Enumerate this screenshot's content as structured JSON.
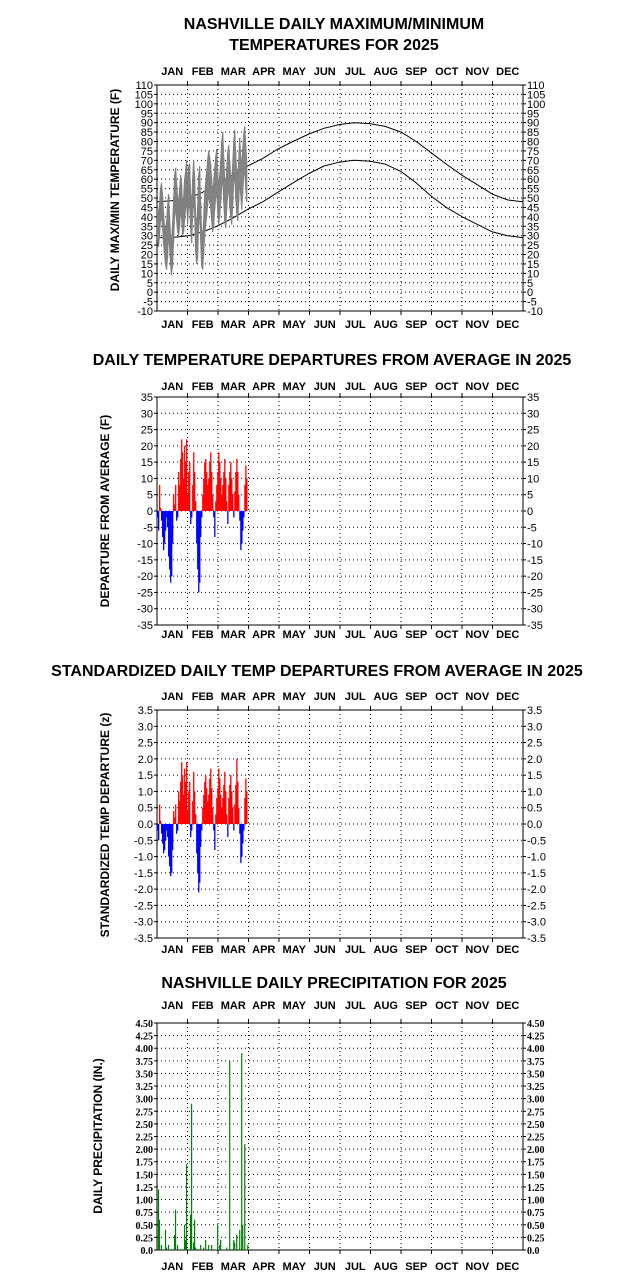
{
  "colors": {
    "actual": "#808080",
    "normal": "#000000",
    "above": "#ff0000",
    "below": "#0000ff",
    "precip": "#008000"
  },
  "months": [
    "JAN",
    "FEB",
    "MAR",
    "APR",
    "MAY",
    "JUN",
    "JUL",
    "AUG",
    "SEP",
    "OCT",
    "NOV",
    "DEC"
  ],
  "chart_data": [
    {
      "type": "line",
      "title_lines": [
        "NASHVILLE DAILY MAXIMUM/MINIMUM",
        "TEMPERATURES FOR 2025"
      ],
      "ylabel": "DAILY MAX/MIN TEMPERATURE (F)",
      "ylim": [
        -10,
        110
      ],
      "yticks": [
        "110",
        "105",
        "100",
        "95",
        "90",
        "85",
        "80",
        "75",
        "70",
        "65",
        "60",
        "55",
        "50",
        "45",
        "40",
        "35",
        "30",
        "25",
        "20",
        "15",
        "10",
        "5",
        "0",
        "-5",
        "-10"
      ],
      "normal_high": {
        "day": [
          1,
          15,
          32,
          46,
          60,
          75,
          91,
          106,
          121,
          136,
          152,
          167,
          182,
          197,
          213,
          228,
          244,
          259,
          274,
          289,
          305,
          320,
          335,
          350,
          365
        ],
        "value": [
          48,
          48.5,
          50,
          53,
          57,
          62,
          67,
          71,
          76,
          80,
          84,
          87,
          89,
          90,
          89.5,
          88,
          85,
          80,
          74,
          68,
          62,
          57,
          52,
          49,
          48
        ]
      },
      "normal_low": {
        "day": [
          1,
          15,
          32,
          46,
          60,
          75,
          91,
          106,
          121,
          136,
          152,
          167,
          182,
          197,
          213,
          228,
          244,
          259,
          274,
          289,
          305,
          320,
          335,
          350,
          365
        ],
        "value": [
          29,
          29,
          30,
          32,
          35,
          39,
          44,
          48,
          53,
          58,
          63,
          67,
          69,
          70,
          69.5,
          68,
          64,
          58,
          51,
          45,
          40,
          36,
          32,
          30,
          29
        ]
      },
      "actual_high": [
        45,
        40,
        47,
        55,
        58,
        52,
        42,
        35,
        33,
        37,
        45,
        52,
        41,
        30,
        27,
        36,
        47,
        62,
        66,
        58,
        50,
        48,
        55,
        62,
        58,
        45,
        50,
        60,
        64,
        70,
        54,
        67,
        68,
        52,
        45,
        60,
        70,
        62,
        40,
        35,
        45,
        62,
        67,
        48,
        33,
        28,
        38,
        52,
        58,
        64,
        70,
        75,
        72,
        68,
        60,
        52,
        58,
        66,
        72,
        76,
        64,
        56,
        62,
        70,
        80,
        85,
        72,
        60,
        55,
        66,
        74,
        78,
        70,
        62,
        58,
        68,
        80,
        86,
        74,
        64,
        60,
        70,
        82,
        72,
        66,
        76,
        84,
        88,
        78,
        70
      ],
      "actual_low": [
        28,
        24,
        30,
        38,
        40,
        35,
        26,
        20,
        15,
        12,
        18,
        30,
        25,
        15,
        9,
        14,
        26,
        40,
        45,
        38,
        32,
        30,
        35,
        42,
        40,
        30,
        32,
        38,
        44,
        50,
        36,
        46,
        48,
        34,
        26,
        40,
        50,
        42,
        22,
        15,
        18,
        36,
        45,
        28,
        14,
        12,
        20,
        30,
        35,
        40,
        46,
        52,
        48,
        45,
        38,
        32,
        35,
        44,
        50,
        55,
        42,
        36,
        40,
        48,
        56,
        62,
        48,
        38,
        34,
        44,
        52,
        56,
        46,
        40,
        36,
        46,
        58,
        64,
        50,
        42,
        38,
        48,
        60,
        52,
        44,
        52,
        62,
        64,
        56,
        48
      ]
    },
    {
      "type": "bar",
      "title": "DAILY TEMPERATURE DEPARTURES FROM AVERAGE IN 2025",
      "ylabel": "DEPARTURE FROM AVERAGE (F)",
      "ylim": [
        -35,
        35
      ],
      "yticks": [
        "35",
        "30",
        "25",
        "20",
        "15",
        "10",
        "5",
        "0",
        "-5",
        "-10",
        "-15",
        "-20",
        "-25",
        "-30",
        "-35"
      ],
      "values": [
        -2,
        -6,
        8,
        1,
        -3,
        -8,
        -12,
        -10,
        -6,
        -2,
        -5,
        -14,
        -18,
        -22,
        -20,
        -10,
        5,
        2,
        8,
        -3,
        -2,
        12,
        8,
        16,
        22,
        18,
        10,
        20,
        15,
        22,
        5,
        12,
        15,
        -4,
        -2,
        8,
        18,
        12,
        3,
        -10,
        -18,
        -25,
        -22,
        -8,
        -2,
        5,
        10,
        15,
        16,
        12,
        8,
        10,
        15,
        18,
        12,
        5,
        -2,
        -8,
        3,
        8,
        12,
        18,
        15,
        10,
        5,
        8,
        12,
        16,
        10,
        3,
        -4,
        8,
        12,
        15,
        10,
        5,
        -2,
        6,
        12,
        16,
        12,
        5,
        -3,
        -12,
        -10,
        -6,
        -2,
        8,
        14,
        10
      ]
    },
    {
      "type": "bar",
      "title": "STANDARDIZED DAILY TEMP DEPARTURES FROM AVERAGE IN 2025",
      "ylabel": "STANDARDIZED TEMP DEPARTURE (z)",
      "ylim": [
        -3.5,
        3.5
      ],
      "yticks": [
        "3.5",
        "3.0",
        "2.5",
        "2.0",
        "1.5",
        "1.0",
        "0.5",
        "0.0",
        "-0.5",
        "-1.0",
        "-1.5",
        "-2.0",
        "-2.5",
        "-3.0",
        "-3.5"
      ],
      "values": [
        -0.2,
        -0.5,
        0.6,
        0.1,
        -0.3,
        -0.6,
        -0.9,
        -0.8,
        -0.5,
        -0.2,
        -0.4,
        -1.0,
        -1.3,
        -1.6,
        -1.5,
        -0.8,
        0.4,
        0.2,
        0.6,
        -0.3,
        -0.2,
        1.0,
        0.7,
        1.3,
        1.9,
        1.5,
        0.9,
        1.7,
        1.3,
        1.9,
        0.4,
        1.0,
        1.3,
        -0.4,
        -0.2,
        0.7,
        1.6,
        1.0,
        0.3,
        -0.9,
        -1.5,
        -2.1,
        -1.8,
        -0.7,
        -0.2,
        0.5,
        0.9,
        1.3,
        1.5,
        1.1,
        0.7,
        0.9,
        1.4,
        1.7,
        1.1,
        0.5,
        -0.2,
        -0.8,
        0.3,
        0.8,
        1.1,
        1.7,
        1.4,
        0.9,
        0.5,
        0.8,
        1.2,
        1.6,
        1.0,
        0.3,
        -0.4,
        0.8,
        1.2,
        1.5,
        1.0,
        0.5,
        -0.2,
        0.6,
        1.2,
        2.0,
        1.3,
        0.5,
        -0.3,
        -1.2,
        -1.0,
        -0.6,
        -0.2,
        0.8,
        1.4,
        1.0
      ]
    },
    {
      "type": "bar",
      "title": "NASHVILLE DAILY PRECIPITATION FOR 2025",
      "ylabel": "DAILY PRECIPITATION (IN.)",
      "ylim": [
        0,
        4.5
      ],
      "yticks": [
        "4.50",
        "4.25",
        "4.00",
        "3.75",
        "3.50",
        "3.25",
        "3.00",
        "2.75",
        "2.50",
        "2.25",
        "2.00",
        "1.75",
        "1.50",
        "1.25",
        "1.00",
        "0.75",
        "0.50",
        "0.25",
        "0.0"
      ],
      "days": [
        2,
        3,
        5,
        9,
        10,
        12,
        18,
        19,
        21,
        28,
        29,
        30,
        34,
        35,
        37,
        38,
        39,
        44,
        47,
        49,
        52,
        55,
        61,
        63,
        64,
        70,
        73,
        77,
        78,
        80,
        83,
        85,
        86,
        88,
        91
      ],
      "values": [
        1.2,
        0.6,
        0.1,
        0.4,
        0.05,
        0.1,
        0.3,
        0.8,
        0.1,
        0.5,
        0.2,
        1.7,
        0.7,
        2.9,
        0.15,
        0.6,
        0.05,
        0.1,
        0.05,
        0.2,
        0.1,
        0.1,
        0.5,
        0.1,
        0.2,
        0.05,
        3.75,
        0.2,
        0.15,
        0.3,
        0.4,
        3.9,
        0.5,
        2.1,
        0.1
      ]
    }
  ]
}
